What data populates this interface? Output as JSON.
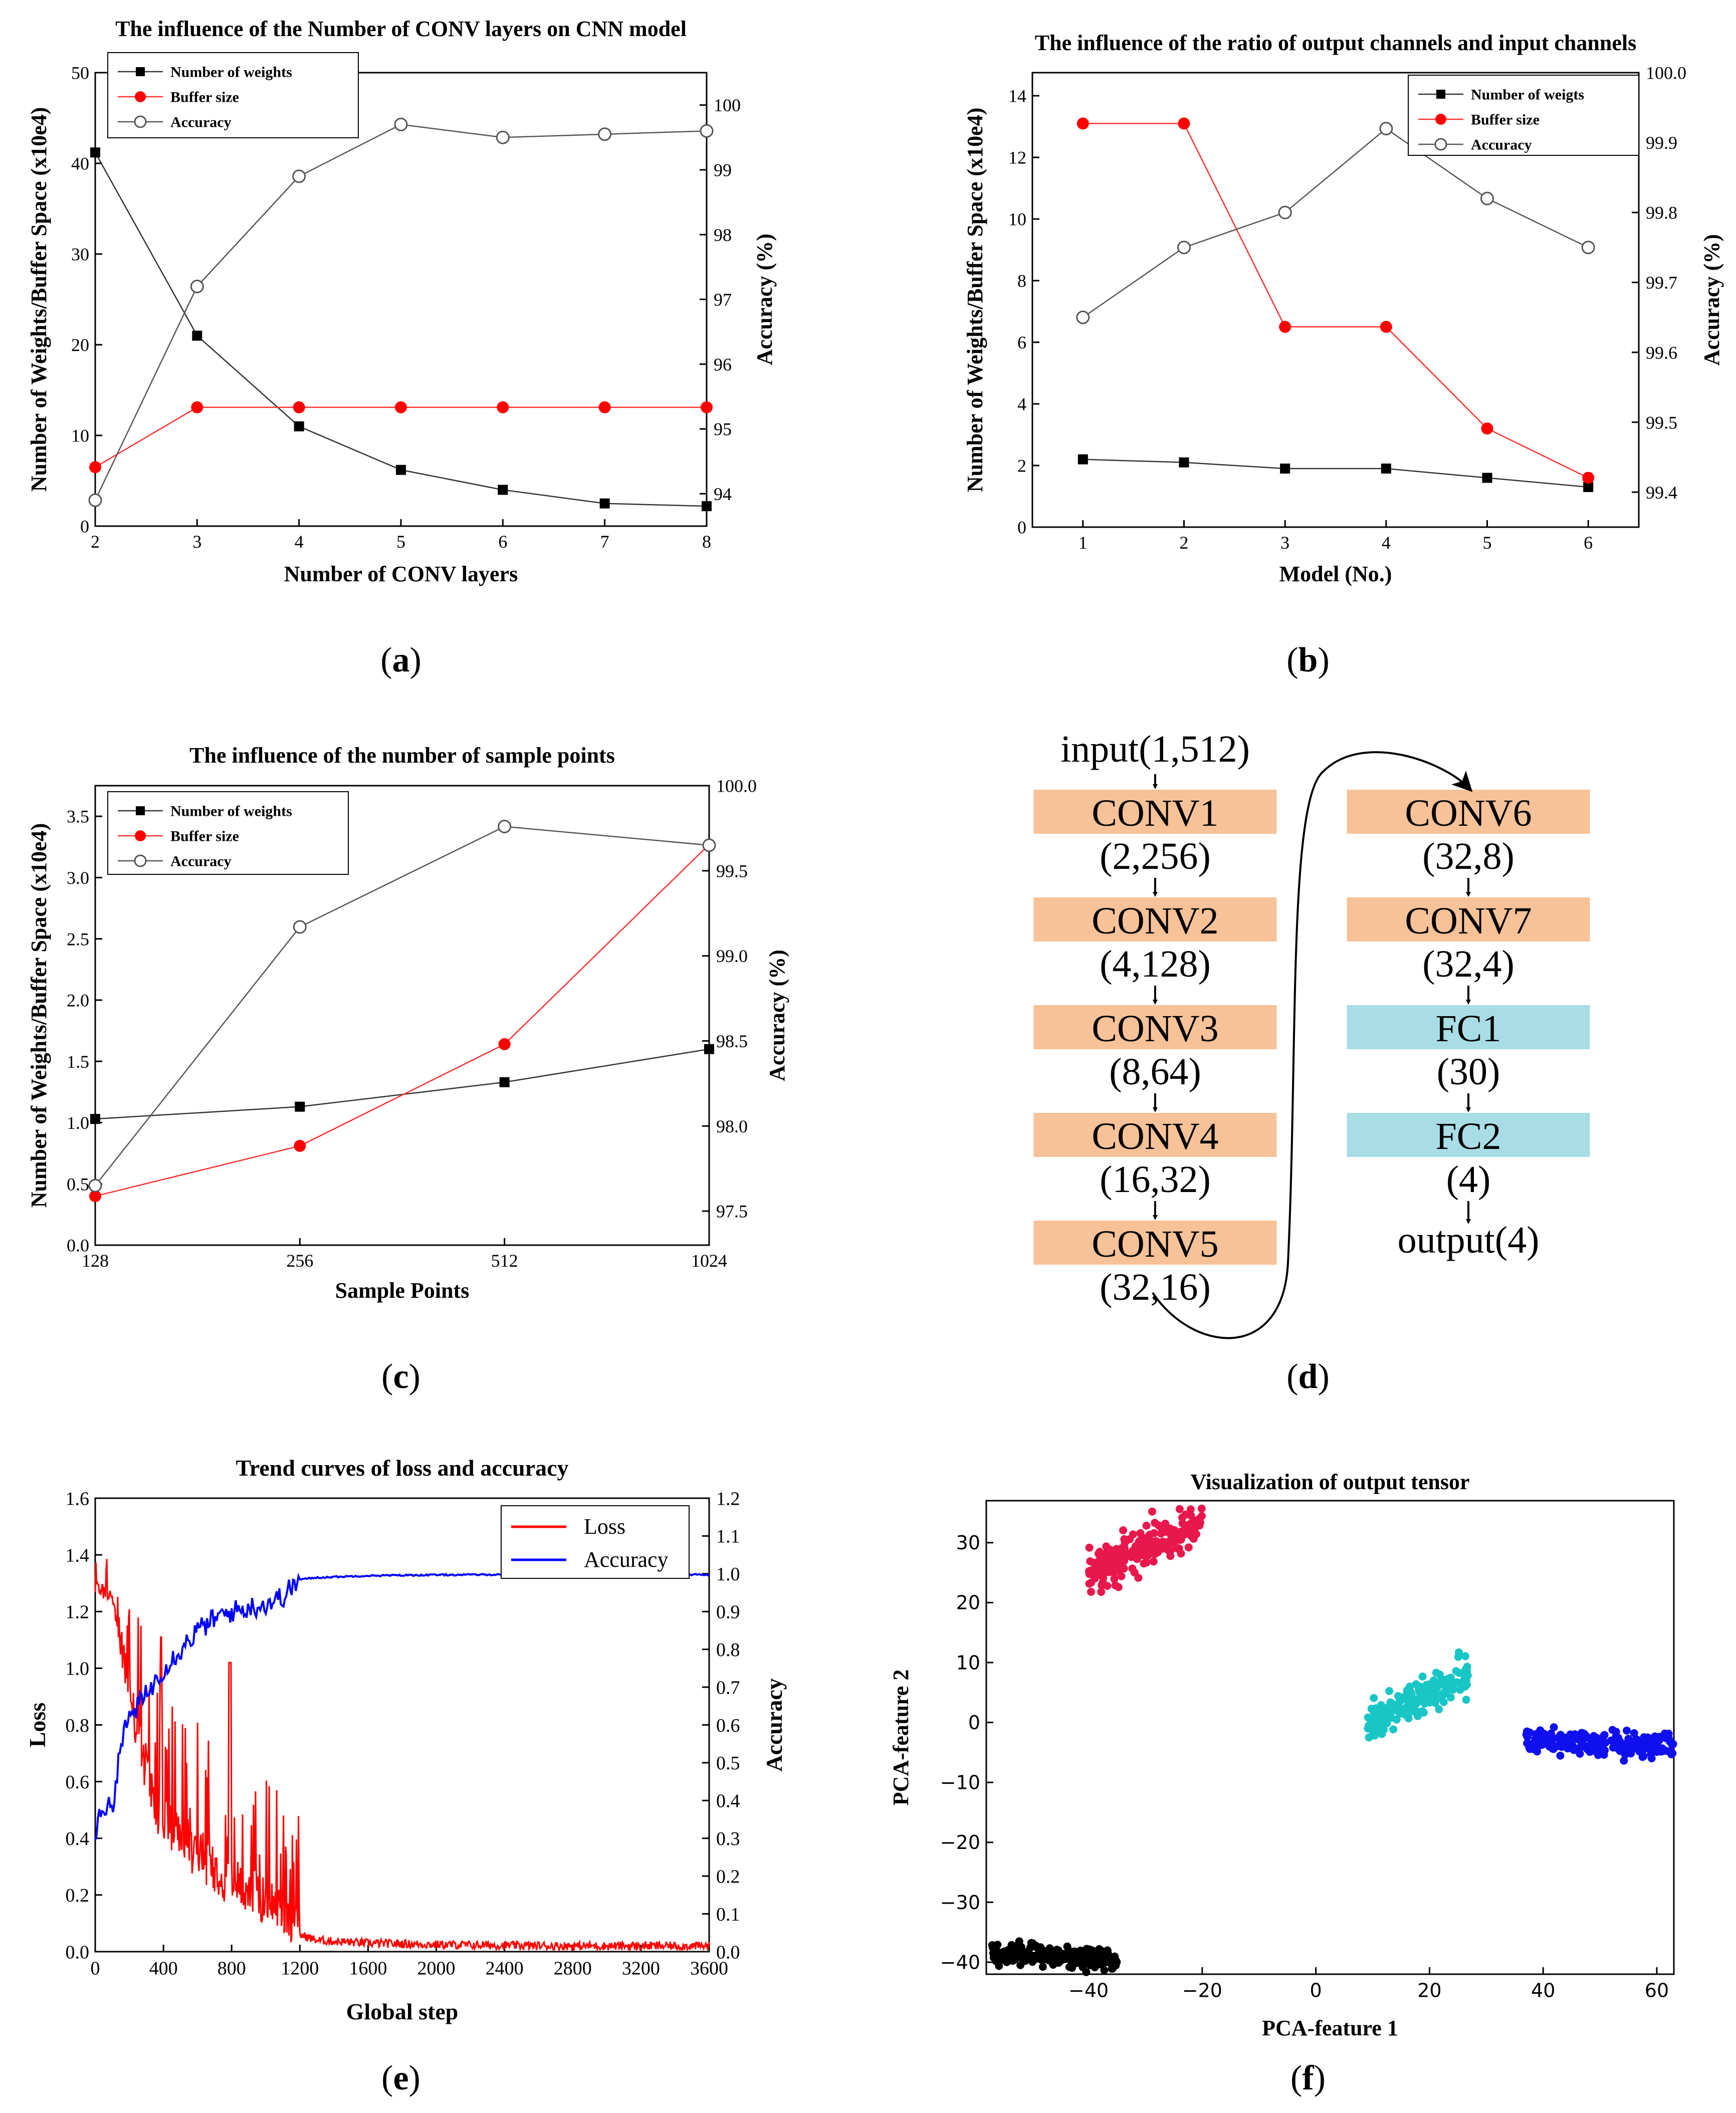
{
  "panel_labels": [
    "a",
    "b",
    "c",
    "d",
    "e",
    "f"
  ],
  "chart_data": [
    {
      "id": "a",
      "type": "line",
      "title": "The influence of the Number of CONV layers on CNN model",
      "xlabel": "Number of CONV layers",
      "ylabel": "Number of Weights/Buffer Space (x10e4)",
      "y2label": "Accuracy (%)",
      "x": [
        2,
        3,
        4,
        5,
        6,
        7,
        8
      ],
      "xlim": [
        2,
        8
      ],
      "xticks": [
        "2",
        "3",
        "4",
        "5",
        "6",
        "7",
        "8"
      ],
      "ylim": [
        0,
        50
      ],
      "yticks": [
        "0",
        "10",
        "20",
        "30",
        "40",
        "50"
      ],
      "y2lim": [
        93.5,
        100.5
      ],
      "y2ticks": [
        "94",
        "95",
        "96",
        "97",
        "98",
        "99",
        "100"
      ],
      "legend_position": "top-left",
      "series": [
        {
          "name": "Number of weights",
          "axis": "left",
          "marker": "square",
          "color": "#000000",
          "values": [
            41.2,
            21.0,
            11.0,
            6.2,
            4.0,
            2.5,
            2.2
          ]
        },
        {
          "name": "Buffer size",
          "axis": "left",
          "marker": "circle",
          "color": "#ff0000",
          "values": [
            6.5,
            13.1,
            13.1,
            13.1,
            13.1,
            13.1,
            13.1
          ]
        },
        {
          "name": "Accuracy",
          "axis": "right",
          "marker": "open-circle",
          "color": "#555555",
          "values": [
            93.9,
            97.2,
            98.9,
            99.7,
            99.5,
            99.55,
            99.6
          ]
        }
      ]
    },
    {
      "id": "b",
      "type": "line",
      "title": "The influence of the ratio of  output channels  and input channels",
      "xlabel": "Model (No.)",
      "ylabel": "Number of Weights/Buffer Space (x10e4)",
      "y2label": "Accuracy (%)",
      "x": [
        1,
        2,
        3,
        4,
        5,
        6
      ],
      "xlim": [
        0.5,
        6.5
      ],
      "xticks": [
        "1",
        "2",
        "3",
        "4",
        "5",
        "6"
      ],
      "ylim": [
        0,
        14.75
      ],
      "yticks": [
        "0",
        "2",
        "4",
        "6",
        "8",
        "10",
        "12",
        "14"
      ],
      "y2lim": [
        99.35,
        100.0
      ],
      "y2ticks": [
        "99.4",
        "99.5",
        "99.6",
        "99.7",
        "99.8",
        "99.9",
        "100.0"
      ],
      "legend_position": "top-right",
      "series": [
        {
          "name": "Number of weigts",
          "axis": "left",
          "marker": "square",
          "color": "#000000",
          "values": [
            2.2,
            2.1,
            1.9,
            1.9,
            1.6,
            1.3
          ]
        },
        {
          "name": "Buffer size",
          "axis": "left",
          "marker": "circle",
          "color": "#ff0000",
          "values": [
            13.1,
            13.1,
            6.5,
            6.5,
            3.2,
            1.6
          ]
        },
        {
          "name": "Accuracy",
          "axis": "right",
          "marker": "open-circle",
          "color": "#555555",
          "values": [
            99.65,
            99.75,
            99.8,
            99.92,
            99.82,
            99.75
          ]
        }
      ]
    },
    {
      "id": "c",
      "type": "line",
      "title": "The influence of the number of  sample points",
      "xlabel": "Sample Points",
      "ylabel": "Number of Weights/Buffer Space (x10e4)",
      "y2label": "Accuracy (%)",
      "x": [
        128,
        256,
        512,
        1024
      ],
      "xlim": [
        0,
        3
      ],
      "xticks": [
        "128",
        "256",
        "512",
        "1024"
      ],
      "ylim": [
        0,
        3.75
      ],
      "yticks": [
        "0.0",
        "0.5",
        "1.0",
        "1.5",
        "2.0",
        "2.5",
        "3.0",
        "3.5"
      ],
      "y2lim": [
        97.3,
        100.0
      ],
      "y2ticks": [
        "97.5",
        "98.0",
        "98.5",
        "99.0",
        "99.5",
        "100.0"
      ],
      "legend_position": "top-left",
      "series": [
        {
          "name": "Number of weights",
          "axis": "left",
          "marker": "square",
          "color": "#000000",
          "values": [
            1.03,
            1.13,
            1.33,
            1.6
          ]
        },
        {
          "name": "Buffer size",
          "axis": "left",
          "marker": "circle",
          "color": "#ff0000",
          "values": [
            0.4,
            0.81,
            1.64,
            3.27
          ]
        },
        {
          "name": "Accuracy",
          "axis": "right",
          "marker": "open-circle",
          "color": "#555555",
          "values": [
            97.65,
            99.17,
            99.76,
            99.65
          ]
        }
      ]
    },
    {
      "id": "e",
      "type": "line",
      "title": "Trend curves of loss and accuracy",
      "xlabel": "Global step",
      "ylabel": "Loss",
      "y2label": "Accuracy",
      "xlim": [
        0,
        3600
      ],
      "xticks": [
        "0",
        "400",
        "800",
        "1200",
        "1600",
        "2000",
        "2400",
        "2800",
        "3200",
        "3600"
      ],
      "ylim": [
        0,
        1.6
      ],
      "yticks": [
        "0.0",
        "0.2",
        "0.4",
        "0.6",
        "0.8",
        "1.0",
        "1.2",
        "1.4",
        "1.6"
      ],
      "y2lim": [
        0,
        1.2
      ],
      "y2ticks": [
        "0.0",
        "0.1",
        "0.2",
        "0.3",
        "0.4",
        "0.5",
        "0.6",
        "0.7",
        "0.8",
        "0.9",
        "1.0",
        "1.1",
        "1.2"
      ],
      "legend_position": "top-right",
      "series": [
        {
          "name": "Loss",
          "axis": "left",
          "color": "#ff0000",
          "x": [
            0,
            100,
            150,
            200,
            250,
            300,
            350,
            400,
            450,
            500,
            600,
            700,
            800,
            900,
            1000,
            1100,
            1200,
            1300,
            1600,
            2000,
            2400,
            2800,
            3200,
            3600
          ],
          "values": [
            1.33,
            1.3,
            1.1,
            0.9,
            0.75,
            0.62,
            0.5,
            0.45,
            0.4,
            0.38,
            0.33,
            0.28,
            0.22,
            0.2,
            0.16,
            0.14,
            0.05,
            0.03,
            0.02,
            0.015,
            0.012,
            0.01,
            0.01,
            0.01
          ]
        },
        {
          "name": "Accuracy",
          "axis": "right",
          "color": "#0000ff",
          "x": [
            0,
            20,
            100,
            150,
            200,
            300,
            400,
            500,
            600,
            700,
            800,
            900,
            1000,
            1100,
            1200,
            1300,
            1600,
            2000,
            2400,
            2800,
            3200,
            3600
          ],
          "values": [
            0.28,
            0.38,
            0.38,
            0.55,
            0.62,
            0.68,
            0.75,
            0.8,
            0.85,
            0.88,
            0.9,
            0.91,
            0.92,
            0.94,
            0.985,
            0.99,
            0.995,
            0.997,
            0.998,
            0.998,
            0.998,
            0.998
          ]
        }
      ]
    },
    {
      "id": "f",
      "type": "scatter",
      "title": "Visualization of output tensor",
      "xlabel": "PCA-feature 1",
      "ylabel": "PCA-feature 2",
      "xlim": [
        -58,
        63
      ],
      "xticks": [
        "−40",
        "−20",
        "0",
        "20",
        "40",
        "60"
      ],
      "ylim": [
        -42,
        37
      ],
      "yticks": [
        "−40",
        "−30",
        "−20",
        "−10",
        "0",
        "10",
        "20",
        "30"
      ],
      "clusters": [
        {
          "color": "#e8174c",
          "x_range": [
            -40,
            -20
          ],
          "center": [
            -29,
            29.5
          ]
        },
        {
          "color": "#19c6c6",
          "x_range": [
            9,
            27
          ],
          "center": [
            18,
            4
          ]
        },
        {
          "color": "#1010ee",
          "x_range": [
            37,
            63
          ],
          "center": [
            50,
            -3.5
          ]
        },
        {
          "color": "#000000",
          "x_range": [
            -57,
            -35
          ],
          "center": [
            -46,
            -39
          ]
        }
      ]
    }
  ],
  "diagram": {
    "input_label": "input(1,512)",
    "output_label": "output(4)",
    "conv_color": "#f7c298",
    "fc_color": "#a8dde6",
    "layers": [
      {
        "name": "CONV1",
        "shape": "(2,256)"
      },
      {
        "name": "CONV2",
        "shape": "(4,128)"
      },
      {
        "name": "CONV3",
        "shape": "(8,64)"
      },
      {
        "name": "CONV4",
        "shape": "(16,32)"
      },
      {
        "name": "CONV5",
        "shape": "(32,16)"
      },
      {
        "name": "CONV6",
        "shape": "(32,8)"
      },
      {
        "name": "CONV7",
        "shape": "(32,4)"
      },
      {
        "name": "FC1",
        "shape": "(30)"
      },
      {
        "name": "FC2",
        "shape": "(4)"
      }
    ]
  }
}
